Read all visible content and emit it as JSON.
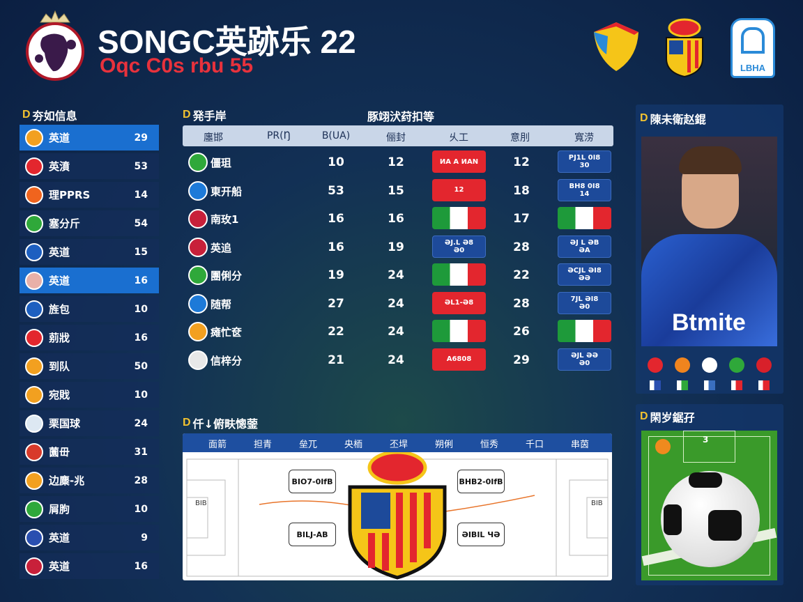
{
  "header": {
    "title": "SONGC英跡乐 22",
    "subtitle": "Oqc C0s rbu 55",
    "logos": [
      "shield-logo",
      "crest-logo",
      "lbha-logo"
    ],
    "lbha_text": "LBHA"
  },
  "left_panel": {
    "title": "夯如信息",
    "marker": "D",
    "items": [
      {
        "label": "英道",
        "value": "29",
        "color": "#f2a020",
        "selected": true
      },
      {
        "label": "英濆",
        "value": "53",
        "color": "#e3262e"
      },
      {
        "label": "理PPRS",
        "value": "14",
        "color": "#f0641e"
      },
      {
        "label": "塞分斤",
        "value": "54",
        "color": "#2fa83a"
      },
      {
        "label": "英道",
        "value": "15",
        "color": "#1d5fc0"
      },
      {
        "label": "英道",
        "value": "16",
        "color": "#e8b0a8",
        "selected": true
      },
      {
        "label": "旌包",
        "value": "10",
        "color": "#1d5fc0"
      },
      {
        "label": "莂戕",
        "value": "16",
        "color": "#e3262e"
      },
      {
        "label": "到队",
        "value": "50",
        "color": "#f2a020"
      },
      {
        "label": "宛戝",
        "value": "10",
        "color": "#f2a020"
      },
      {
        "label": "栗国球",
        "value": "24",
        "color": "#dde8f2"
      },
      {
        "label": "薗毌",
        "value": "31",
        "color": "#d83a2a"
      },
      {
        "label": "边麋-兆",
        "value": "28",
        "color": "#f2a020"
      },
      {
        "label": "屑朐",
        "value": "10",
        "color": "#2fa83a"
      },
      {
        "label": "英道",
        "value": "9",
        "color": "#2a4fb0"
      },
      {
        "label": "英道",
        "value": "16",
        "color": "#c8203a"
      }
    ]
  },
  "table": {
    "section_title": "発手岸",
    "marker": "D",
    "title": "豚翊汱荮扣等",
    "columns": [
      "廛邯",
      "PR(Ŋ",
      "B(UA)",
      "俪封",
      "乆工",
      "意刖",
      "寬涝"
    ],
    "rows": [
      {
        "name": "僵珇",
        "color": "#2fa83a",
        "b": "10",
        "c": "12",
        "badge1": {
          "type": "red",
          "l1": "ИA A ИAN",
          "l2": ""
        },
        "d": "12",
        "badge2": {
          "type": "blue",
          "l1": "PJ1L 0I8",
          "l2": "30"
        }
      },
      {
        "name": "東开船",
        "color": "#1d7ad8",
        "b": "53",
        "c": "15",
        "badge1": {
          "type": "red",
          "l1": "12",
          "l2": ""
        },
        "d": "18",
        "badge2": {
          "type": "blue",
          "l1": "BH8 0I8",
          "l2": "14"
        }
      },
      {
        "name": "南玫1",
        "color": "#c8203a",
        "b": "16",
        "c": "16",
        "badge1": {
          "type": "italy",
          "l1": "",
          "l2": ""
        },
        "d": "17",
        "badge2": {
          "type": "italy",
          "l1": "",
          "l2": ""
        }
      },
      {
        "name": "英追",
        "color": "#c8203a",
        "b": "16",
        "c": "19",
        "badge1": {
          "type": "blue",
          "l1": "ƏJ.L Ə8",
          "l2": "Ə0"
        },
        "d": "28",
        "badge2": {
          "type": "blue",
          "l1": "ƏJ L ƏB",
          "l2": "ƏA"
        }
      },
      {
        "name": "團俐分",
        "color": "#2fa83a",
        "b": "19",
        "c": "24",
        "badge1": {
          "type": "italy",
          "l1": "",
          "l2": ""
        },
        "d": "22",
        "badge2": {
          "type": "blue",
          "l1": "ƏCJL ƏI8",
          "l2": "ƏƏ"
        }
      },
      {
        "name": "随帮",
        "color": "#1d7ad8",
        "b": "27",
        "c": "24",
        "badge1": {
          "type": "red",
          "l1": "ƏL1-Ə8",
          "l2": ""
        },
        "d": "28",
        "badge2": {
          "type": "blue",
          "l1": "7JL ƏI8",
          "l2": "Ə0"
        }
      },
      {
        "name": "瘫忙奁",
        "color": "#f2a020",
        "b": "22",
        "c": "24",
        "badge1": {
          "type": "italy",
          "l1": "",
          "l2": ""
        },
        "d": "26",
        "badge2": {
          "type": "italy",
          "l1": "",
          "l2": ""
        }
      },
      {
        "name": "信梓分",
        "color": "#e8e8e8",
        "b": "21",
        "c": "24",
        "badge1": {
          "type": "red",
          "l1": "A6808",
          "l2": ""
        },
        "d": "29",
        "badge2": {
          "type": "blue",
          "l1": "ƏJL ƏƏ",
          "l2": "Ə0"
        }
      }
    ]
  },
  "pitch_panel": {
    "title": "仟↓俯畉憁蓥",
    "marker": "D",
    "columns": [
      "面箭",
      "担青",
      "垒兀",
      "央栭",
      "丕垾",
      "朔俐",
      "恒秀",
      "千口",
      "串茵"
    ],
    "callouts": [
      "BIO7-0IfB",
      "BHB2-0IfB",
      "BILJ-AB",
      "ƏIBIL ЧƏ"
    ],
    "side_label": "BIB"
  },
  "player_panel": {
    "title": "陳未衛赵錕",
    "marker": "D",
    "jersey_text": "Btmite",
    "icons_row1": [
      "#e3262e",
      "#f0841e",
      "#ffffff",
      "#2fa83a",
      "#d8202a"
    ],
    "icons_row2": [
      "#2a4fb0",
      "#2fa83a",
      "#3a6fc0",
      "#e3262e",
      "#e3262e"
    ]
  },
  "field_panel": {
    "title": "閑岁鋸孖",
    "marker": "D",
    "label": "3"
  }
}
